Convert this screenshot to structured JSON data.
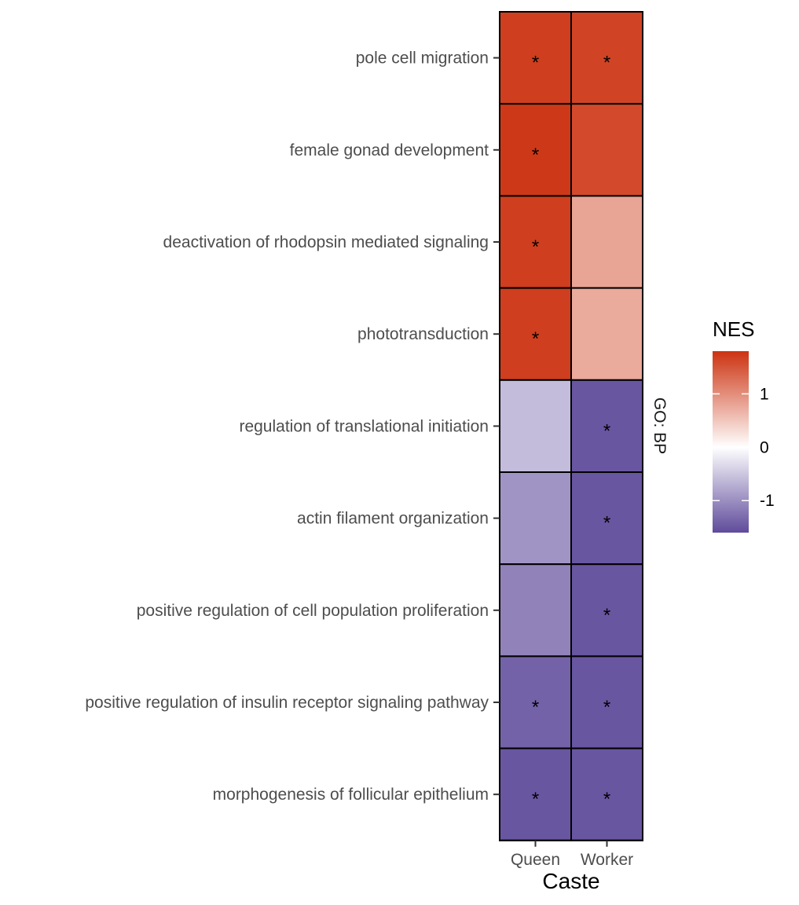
{
  "chart_data": {
    "type": "heatmap",
    "x_title": "Caste",
    "columns": [
      "Queen",
      "Worker"
    ],
    "rows": [
      "pole cell migration",
      "female gonad development",
      "deactivation of rhodopsin mediated signaling",
      "phototransduction",
      "regulation of translational initiation",
      "actin filament organization",
      "positive regulation of cell population proliferation",
      "positive regulation of insulin receptor signaling pathway",
      "morphogenesis of follicular epithelium"
    ],
    "values": [
      [
        1.7,
        1.65
      ],
      [
        1.75,
        1.6
      ],
      [
        1.7,
        0.8
      ],
      [
        1.7,
        0.75
      ],
      [
        -0.6,
        -1.5
      ],
      [
        -0.95,
        -1.5
      ],
      [
        -1.1,
        -1.5
      ],
      [
        -1.4,
        -1.5
      ],
      [
        -1.5,
        -1.5
      ]
    ],
    "significant": [
      [
        true,
        true
      ],
      [
        true,
        false
      ],
      [
        true,
        false
      ],
      [
        true,
        false
      ],
      [
        false,
        true
      ],
      [
        false,
        true
      ],
      [
        false,
        true
      ],
      [
        true,
        true
      ],
      [
        true,
        true
      ]
    ],
    "significance_marker": "*",
    "facet_label": "GO: BP",
    "legend": {
      "title": "NES",
      "range": [
        -1.6,
        1.8
      ],
      "ticks": [
        1,
        0,
        -1
      ],
      "tick_labels": [
        "1",
        "0",
        "-1"
      ],
      "low_color": "#5f4b9b",
      "mid_color": "#ffffff",
      "high_color": "#cc3311",
      "position": "right"
    }
  }
}
